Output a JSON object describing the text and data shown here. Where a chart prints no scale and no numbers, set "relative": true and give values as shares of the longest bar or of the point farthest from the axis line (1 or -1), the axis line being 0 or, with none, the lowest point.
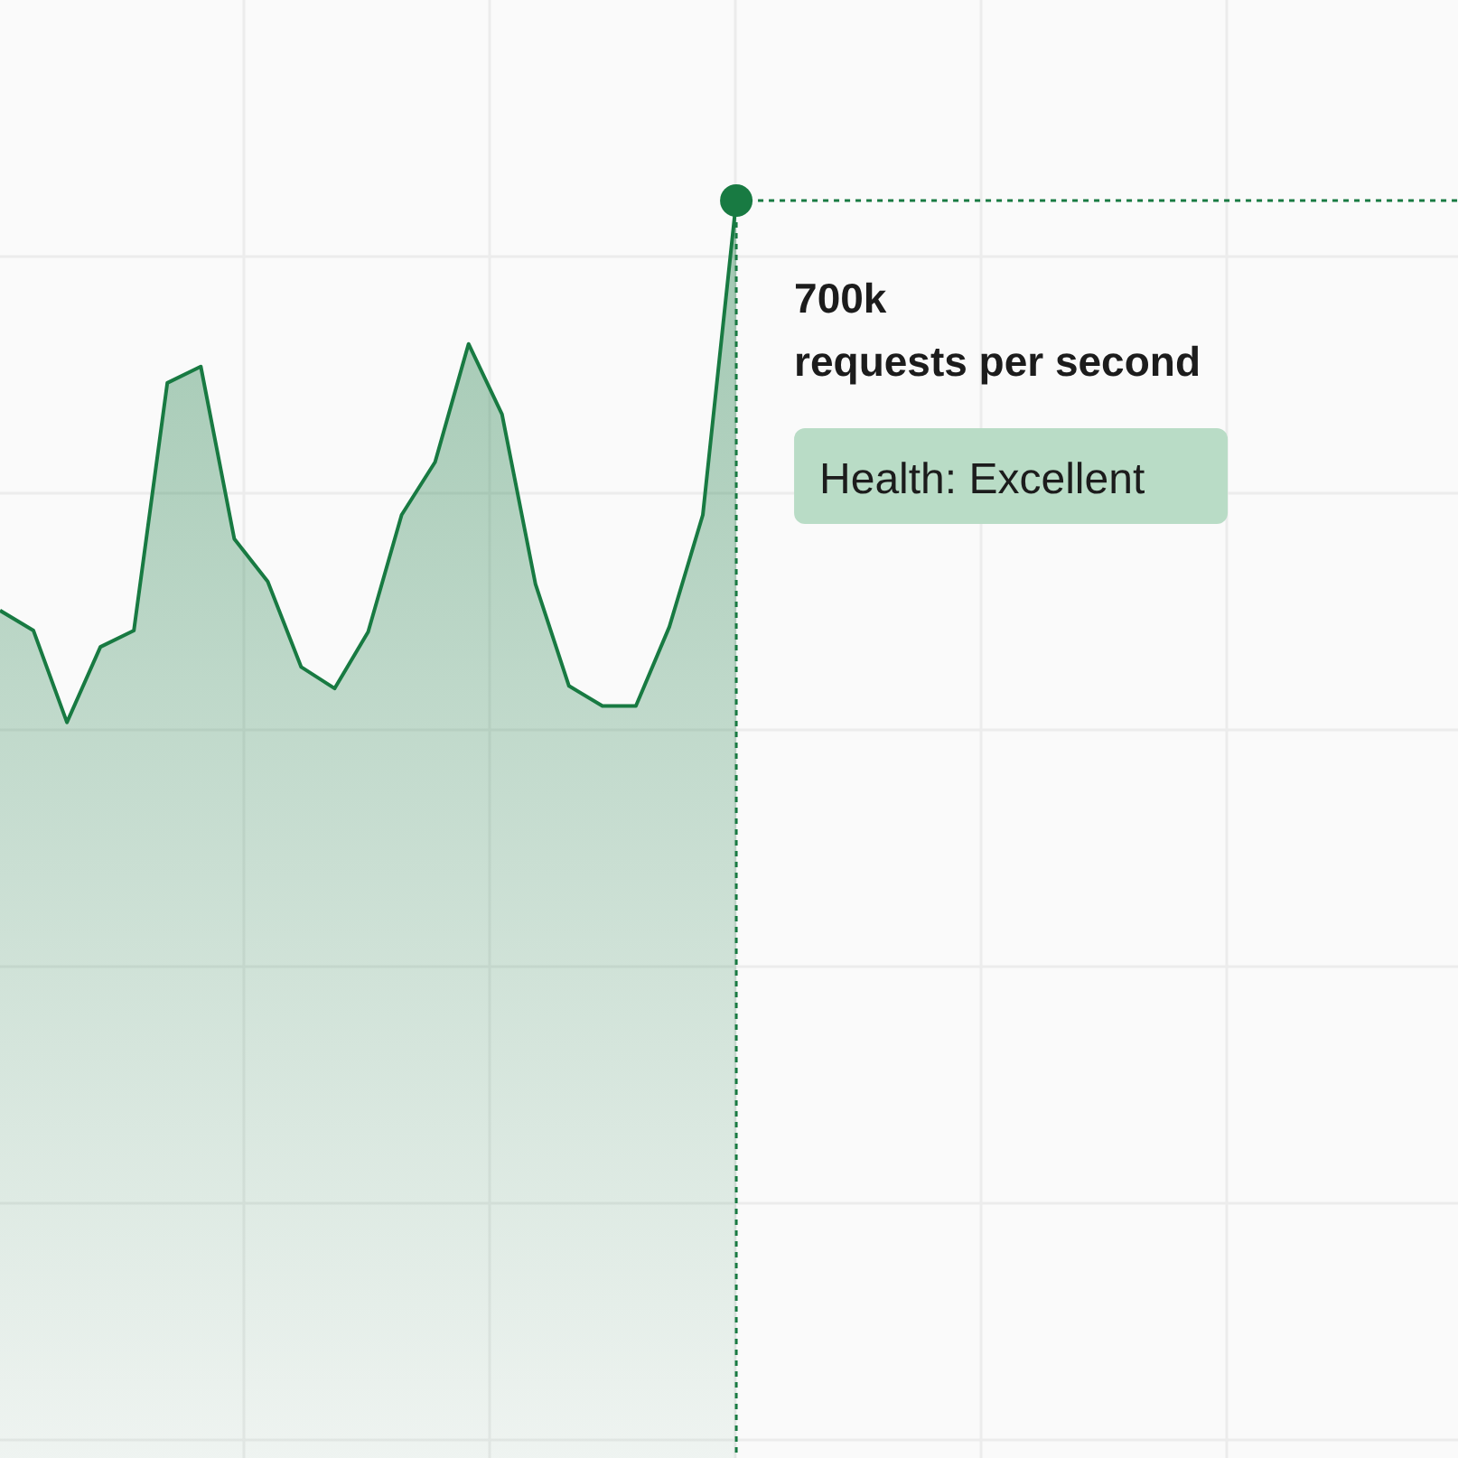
{
  "chart_data": {
    "type": "area",
    "relative": true,
    "categories": [
      null,
      null,
      null,
      null,
      null,
      null,
      null,
      null,
      null,
      null,
      null,
      null,
      null,
      null,
      null,
      null,
      null,
      null,
      null,
      null,
      null,
      null,
      null
    ],
    "series": [
      {
        "color": "#187a42",
        "values": [
          0.674,
          0.658,
          0.585,
          0.645,
          0.658,
          0.855,
          0.868,
          0.731,
          0.697,
          0.629,
          0.612,
          0.657,
          0.75,
          0.792,
          0.886,
          0.83,
          0.695,
          0.614,
          0.598,
          0.598,
          0.661,
          0.75,
          1
        ]
      }
    ],
    "marker": "none",
    "grid": true,
    "annotations": [
      "700k",
      "requests per second",
      "Health: Excellent"
    ]
  }
}
